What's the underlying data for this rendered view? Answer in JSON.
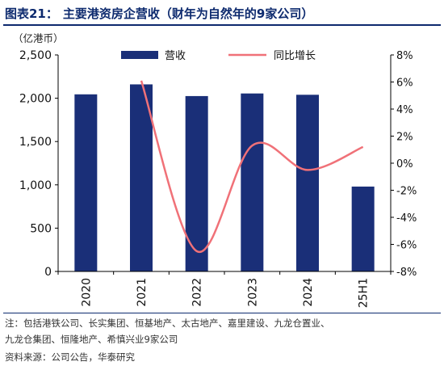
{
  "figure": {
    "label": "图表21：",
    "title": "主要港资房企营收（财年为自然年的9家公司）"
  },
  "unit_label": "（亿港币）",
  "notes": {
    "line1": "注：包括港铁公司、长实集团、恒基地产、太古地产、嘉里建设、九龙仓置业、",
    "line2": "九龙仓集团、恒隆地产、希慎兴业9家公司"
  },
  "source": "资料来源：公司公告，华泰研究",
  "colors": {
    "bar": "#1a2f78",
    "line": "#f07178",
    "axis": "#000000",
    "title": "#0d2a6e"
  },
  "chart_data": {
    "type": "bar+line",
    "categories": [
      "2020",
      "2021",
      "2022",
      "2023",
      "2024",
      "25H1"
    ],
    "series": [
      {
        "name": "营收",
        "type": "bar",
        "axis": "left",
        "values": [
          2045,
          2160,
          2025,
          2055,
          2040,
          980
        ]
      },
      {
        "name": "同比增长",
        "type": "line",
        "axis": "right",
        "smooth": true,
        "values": [
          null,
          6.1,
          -6.5,
          1.3,
          -0.5,
          1.2
        ]
      }
    ],
    "y_left": {
      "min": 0,
      "max": 2500,
      "ticks": [
        "0",
        "500",
        "1,000",
        "1,500",
        "2,000",
        "2,500"
      ]
    },
    "y_right": {
      "min": -8,
      "max": 8,
      "ticks": [
        "-8%",
        "-6%",
        "-4%",
        "-2%",
        "0%",
        "2%",
        "4%",
        "6%",
        "8%"
      ]
    },
    "legend_position": "top-center",
    "grid": false
  }
}
